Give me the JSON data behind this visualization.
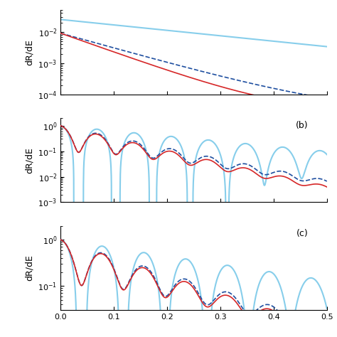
{
  "panel_a": {
    "ylim": [
      0.0001,
      0.05
    ],
    "yticks": [
      0.0001,
      0.001,
      0.01
    ],
    "ylabel": "dR/dE",
    "label": ""
  },
  "panel_b": {
    "ylim": [
      0.001,
      2
    ],
    "yticks": [
      0.001,
      0.01,
      0.1,
      1
    ],
    "ylabel": "dR/dE",
    "label": "(b)"
  },
  "panel_c": {
    "ylim": [
      0.03,
      2
    ],
    "yticks": [
      0.1,
      1
    ],
    "ylabel": "dR/dE",
    "label": "(c)"
  },
  "xlim": [
    0,
    0.5
  ],
  "xticks": [
    0,
    0.1,
    0.2,
    0.3,
    0.4,
    0.5
  ],
  "color_red": "#d62728",
  "color_blue_dashed": "#1f4fa0",
  "color_light_blue": "#87ceeb",
  "linewidth_main": 1.2,
  "linewidth_light": 1.5
}
